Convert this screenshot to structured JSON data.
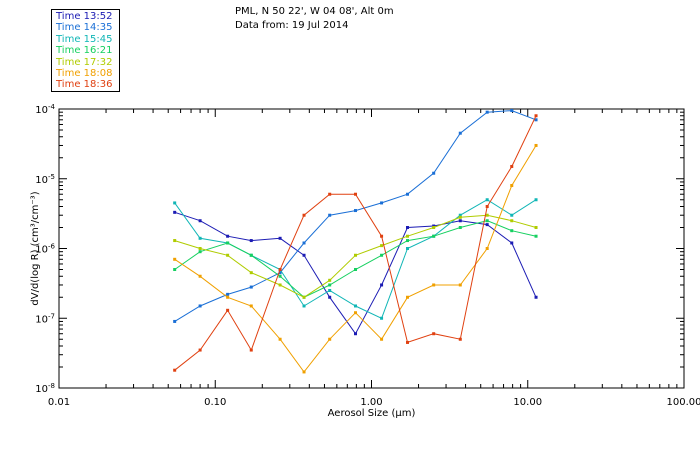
{
  "header": {
    "station": "PML, N 50 22', W 04 08', Alt 0m",
    "data_from": "Data from: 19 Jul 2014"
  },
  "chart_data": {
    "type": "line",
    "x_scale": "log",
    "y_scale": "log",
    "xlabel": "Aerosol Size (μm)",
    "ylabel": "dV/d(log R) (cm³/cm⁻³)",
    "xlim": [
      0.01,
      100
    ],
    "ylim": [
      1e-08,
      0.0001
    ],
    "x_ticks": [
      {
        "value": 0.01,
        "label": "0.01"
      },
      {
        "value": 0.1,
        "label": "0.10"
      },
      {
        "value": 1,
        "label": "1.00"
      },
      {
        "value": 10,
        "label": "10.00"
      },
      {
        "value": 100,
        "label": "100.00"
      }
    ],
    "y_ticks": [
      {
        "value": 1e-08,
        "base": "10",
        "exp": "-8"
      },
      {
        "value": 1e-07,
        "base": "10",
        "exp": "-7"
      },
      {
        "value": 1e-06,
        "base": "10",
        "exp": "-6"
      },
      {
        "value": 1e-05,
        "base": "10",
        "exp": "-5"
      },
      {
        "value": 0.0001,
        "base": "10",
        "exp": "-4"
      }
    ],
    "x": [
      0.055,
      0.08,
      0.12,
      0.17,
      0.26,
      0.37,
      0.54,
      0.79,
      1.16,
      1.7,
      2.5,
      3.7,
      5.5,
      7.9,
      11.3
    ],
    "legend": [
      {
        "label": "Time 13:52",
        "color": "#1c1cb4"
      },
      {
        "label": "Time 14:35",
        "color": "#1a6fd6"
      },
      {
        "label": "Time 15:45",
        "color": "#10b6b6"
      },
      {
        "label": "Time 16:21",
        "color": "#16d060"
      },
      {
        "label": "Time 17:32",
        "color": "#b0cc00"
      },
      {
        "label": "Time 18:08",
        "color": "#f0a000"
      },
      {
        "label": "Time 18:36",
        "color": "#e04010"
      }
    ],
    "series": [
      {
        "name": "Time 13:52",
        "color": "#1c1cb4",
        "values": [
          3.3e-06,
          2.5e-06,
          1.5e-06,
          1.3e-06,
          1.4e-06,
          8e-07,
          2e-07,
          6e-08,
          3e-07,
          2e-06,
          2.1e-06,
          2.5e-06,
          2.2e-06,
          1.2e-06,
          2e-07
        ]
      },
      {
        "name": "Time 14:35",
        "color": "#1a6fd6",
        "values": [
          9e-08,
          1.5e-07,
          2.2e-07,
          2.8e-07,
          4.5e-07,
          1.2e-06,
          3e-06,
          3.5e-06,
          4.5e-06,
          6e-06,
          1.2e-05,
          4.5e-05,
          9e-05,
          9.5e-05,
          7e-05
        ]
      },
      {
        "name": "Time 15:45",
        "color": "#10b6b6",
        "values": [
          4.5e-06,
          1.4e-06,
          1.2e-06,
          8e-07,
          5e-07,
          1.5e-07,
          2.5e-07,
          1.5e-07,
          1e-07,
          1e-06,
          1.5e-06,
          3e-06,
          5e-06,
          3e-06,
          5e-06
        ]
      },
      {
        "name": "Time 16:21",
        "color": "#16d060",
        "values": [
          5e-07,
          9e-07,
          1.2e-06,
          8e-07,
          4e-07,
          2e-07,
          3e-07,
          5e-07,
          8e-07,
          1.3e-06,
          1.5e-06,
          2e-06,
          2.5e-06,
          1.8e-06,
          1.5e-06
        ]
      },
      {
        "name": "Time 17:32",
        "color": "#b0cc00",
        "values": [
          1.3e-06,
          1e-06,
          8e-07,
          4.5e-07,
          3e-07,
          2e-07,
          3.5e-07,
          8e-07,
          1.1e-06,
          1.5e-06,
          2e-06,
          2.8e-06,
          3e-06,
          2.5e-06,
          2e-06
        ]
      },
      {
        "name": "Time 18:08",
        "color": "#f0a000",
        "values": [
          7e-07,
          4e-07,
          2e-07,
          1.5e-07,
          5e-08,
          1.7e-08,
          5e-08,
          1.2e-07,
          5e-08,
          2e-07,
          3e-07,
          3e-07,
          1e-06,
          8e-06,
          3e-05
        ]
      },
      {
        "name": "Time 18:36",
        "color": "#e04010",
        "values": [
          1.8e-08,
          3.5e-08,
          1.3e-07,
          3.5e-08,
          5e-07,
          3e-06,
          6e-06,
          6e-06,
          1.5e-06,
          4.5e-08,
          6e-08,
          5e-08,
          4e-06,
          1.5e-05,
          8e-05
        ]
      }
    ]
  }
}
